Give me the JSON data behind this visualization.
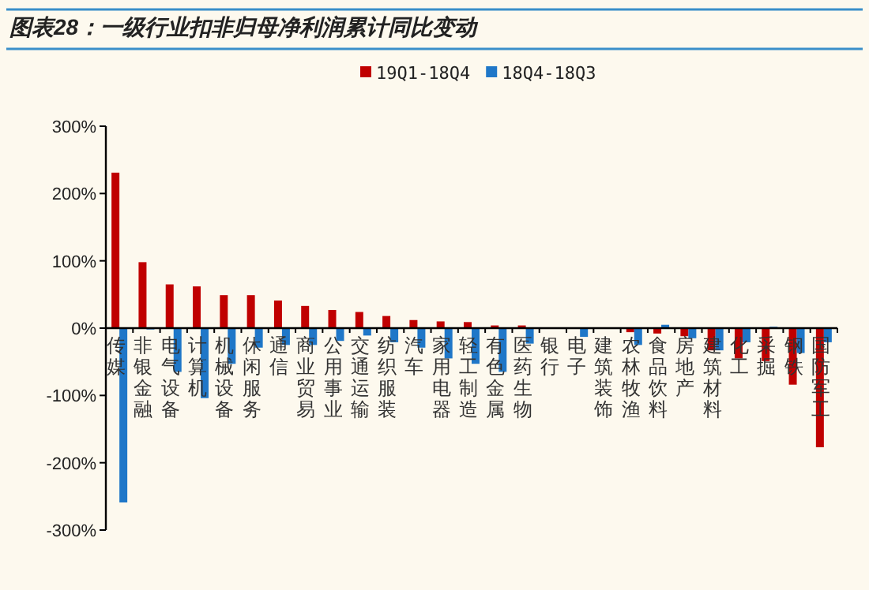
{
  "chart_data": {
    "type": "bar",
    "title": "图表28：一级行业扣非归母净利润累计同比变动",
    "categories": [
      "传媒",
      "非银金融",
      "电气设备",
      "计算机",
      "机械设备",
      "休闲服务",
      "通信",
      "商业贸易",
      "公用事业",
      "交通运输",
      "纺织服装",
      "汽车",
      "家用电器",
      "轻工制造",
      "有色金属",
      "医药生物",
      "银行",
      "电子",
      "建筑装饰",
      "农林牧渔",
      "食品饮料",
      "房地产",
      "建筑材料",
      "化工",
      "采掘",
      "钢铁",
      "国防军工"
    ],
    "series": [
      {
        "name": "19Q1-18Q4",
        "color": "#c00000",
        "values": [
          231,
          98,
          65,
          62,
          49,
          49,
          41,
          33,
          27,
          24,
          18,
          12,
          10,
          9,
          4,
          4,
          null,
          0,
          0,
          -6,
          -8,
          -12,
          -33,
          -45,
          -49,
          -84,
          -177
        ]
      },
      {
        "name": "18Q4-18Q3",
        "color": "#1f77c8",
        "values": [
          -259,
          -2,
          -65,
          -104,
          -53,
          -29,
          -25,
          -25,
          -19,
          -11,
          -21,
          -29,
          -45,
          -53,
          -65,
          -23,
          0,
          -13,
          0,
          -25,
          5,
          -15,
          -33,
          -21,
          2,
          -37,
          -21
        ]
      }
    ],
    "ylim": [
      -300,
      300
    ],
    "yticks": [
      {
        "value": -300,
        "label": "-300%"
      },
      {
        "value": -200,
        "label": "-200%"
      },
      {
        "value": -100,
        "label": "-100%"
      },
      {
        "value": 0,
        "label": "0%"
      },
      {
        "value": 100,
        "label": "100%"
      },
      {
        "value": 200,
        "label": "200%"
      },
      {
        "value": 300,
        "label": "300%"
      }
    ],
    "legend": "top",
    "grid": false
  }
}
